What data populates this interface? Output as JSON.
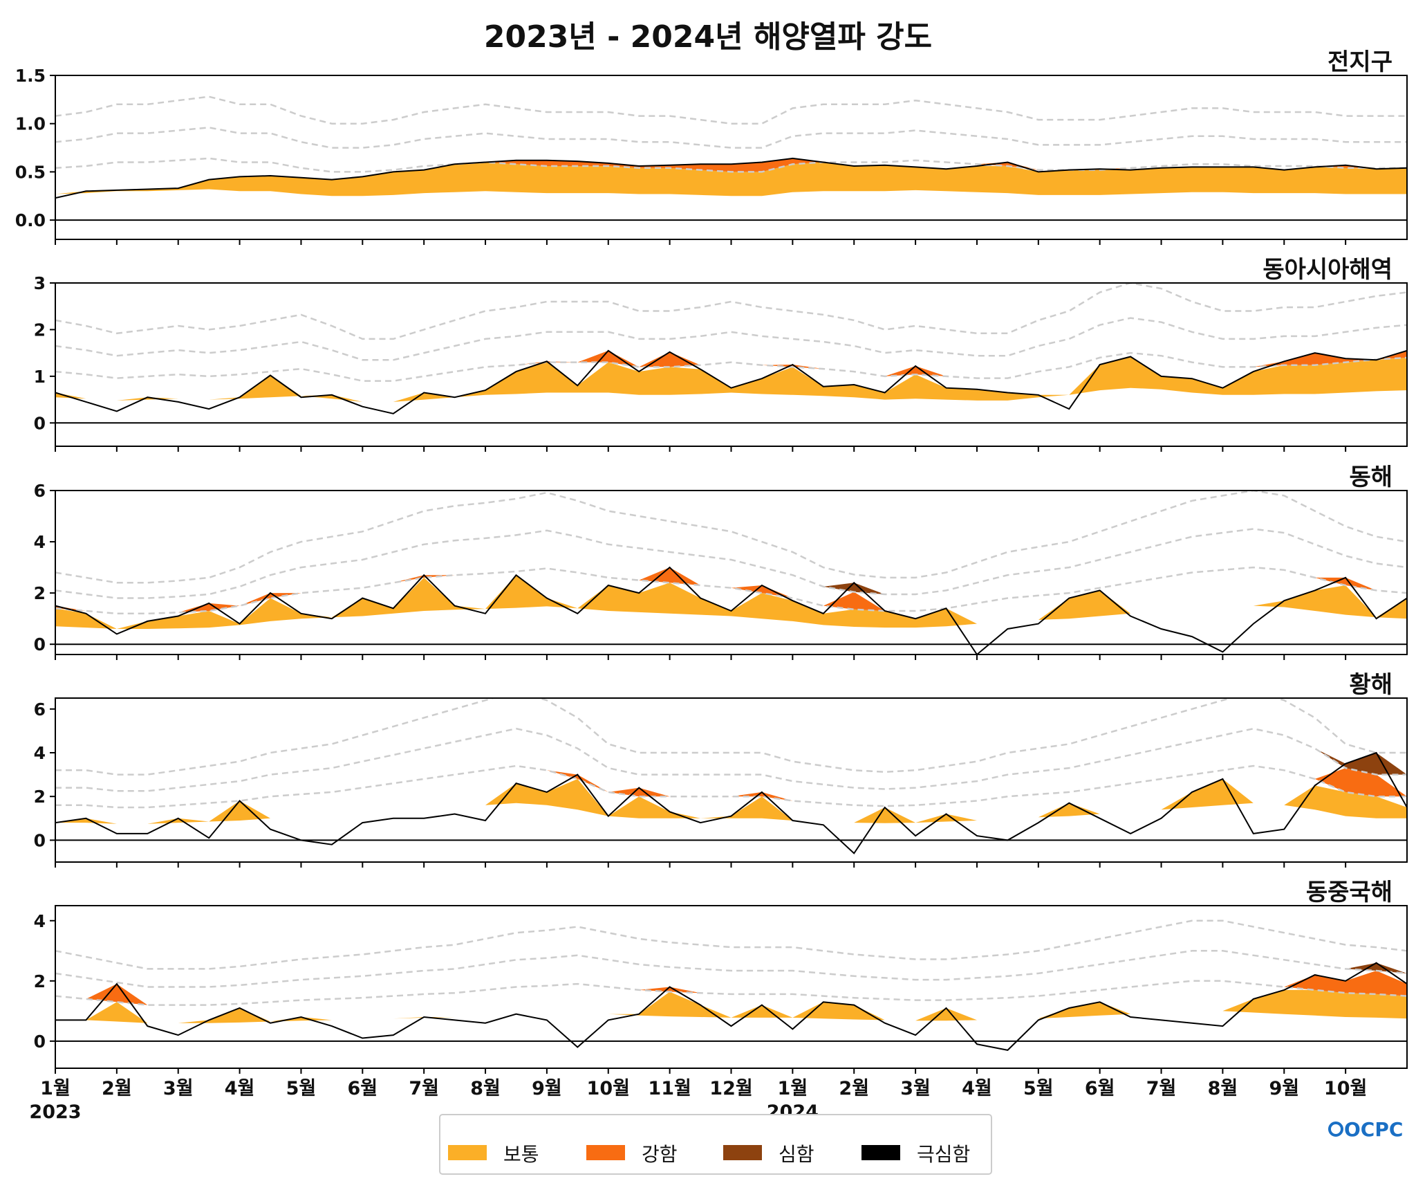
{
  "title": "2023년 - 2024년 해양열파 강도",
  "logo_text": "OCPC",
  "colors": {
    "moderate": "#fbaf27",
    "strong": "#f86c12",
    "severe": "#8d420f",
    "extreme": "#000000",
    "threshold": "#cccccc"
  },
  "legend": [
    {
      "label": "보통",
      "color": "#fbaf27"
    },
    {
      "label": "강함",
      "color": "#f86c12"
    },
    {
      "label": "심함",
      "color": "#8d420f"
    },
    {
      "label": "극심함",
      "color": "#000000"
    }
  ],
  "x_axis": {
    "month_labels": [
      "1월",
      "2월",
      "3월",
      "4월",
      "5월",
      "6월",
      "7월",
      "8월",
      "9월",
      "10월",
      "11월",
      "12월",
      "1월",
      "2월",
      "3월",
      "4월",
      "5월",
      "6월",
      "7월",
      "8월",
      "9월",
      "10월"
    ],
    "month_index": [
      0,
      1,
      2,
      3,
      4,
      5,
      6,
      7,
      8,
      9,
      10,
      11,
      12,
      13,
      14,
      15,
      16,
      17,
      18,
      19,
      20,
      21
    ],
    "year_labels": [
      "2023",
      "2024"
    ],
    "year_month_index": [
      0,
      12
    ],
    "range_months": [
      0,
      22
    ]
  },
  "chart_data": [
    {
      "type": "area",
      "title": "전지구",
      "ylim": [
        -0.2,
        1.5
      ],
      "yticks": [
        "0.0",
        "0.5",
        "1.0",
        "1.5"
      ],
      "ytick_values": [
        0,
        0.5,
        1.0,
        1.5
      ],
      "x_month": [
        0,
        0.5,
        1,
        1.5,
        2,
        2.5,
        3,
        3.5,
        4,
        4.5,
        5,
        5.5,
        6,
        6.5,
        7,
        7.5,
        8,
        8.5,
        9,
        9.5,
        10,
        10.5,
        11,
        11.5,
        12,
        12.5,
        13,
        13.5,
        14,
        14.5,
        15,
        15.5,
        16,
        16.5,
        17,
        17.5,
        18,
        18.5,
        19,
        19.5,
        20,
        20.5,
        21,
        21.5,
        22
      ],
      "anomaly": [
        0.23,
        0.3,
        0.31,
        0.32,
        0.33,
        0.42,
        0.45,
        0.46,
        0.44,
        0.42,
        0.45,
        0.5,
        0.52,
        0.58,
        0.6,
        0.62,
        0.62,
        0.61,
        0.59,
        0.56,
        0.57,
        0.58,
        0.58,
        0.6,
        0.64,
        0.6,
        0.56,
        0.57,
        0.55,
        0.53,
        0.56,
        0.6,
        0.5,
        0.52,
        0.53,
        0.52,
        0.54,
        0.55,
        0.55,
        0.55,
        0.52,
        0.55,
        0.57,
        0.53,
        0.54
      ],
      "threshold": [
        0.27,
        0.28,
        0.3,
        0.3,
        0.31,
        0.32,
        0.3,
        0.3,
        0.27,
        0.25,
        0.25,
        0.26,
        0.28,
        0.29,
        0.3,
        0.29,
        0.28,
        0.28,
        0.28,
        0.27,
        0.27,
        0.26,
        0.25,
        0.25,
        0.29,
        0.3,
        0.3,
        0.3,
        0.31,
        0.3,
        0.29,
        0.28,
        0.26,
        0.26,
        0.26,
        0.27,
        0.28,
        0.29,
        0.29,
        0.28,
        0.28,
        0.28,
        0.27,
        0.27,
        0.27
      ],
      "gray_threshold_levels": [
        2,
        3,
        4
      ]
    },
    {
      "type": "area",
      "title": "동아시아해역",
      "ylim": [
        -0.5,
        3
      ],
      "yticks": [
        "0",
        "1",
        "2",
        "3"
      ],
      "ytick_values": [
        0,
        1,
        2,
        3
      ],
      "x_month": [
        0,
        0.5,
        1,
        1.5,
        2,
        2.5,
        3,
        3.5,
        4,
        4.5,
        5,
        5.5,
        6,
        6.5,
        7,
        7.5,
        8,
        8.5,
        9,
        9.5,
        10,
        10.5,
        11,
        11.5,
        12,
        12.5,
        13,
        13.5,
        14,
        14.5,
        15,
        15.5,
        16,
        16.5,
        17,
        17.5,
        18,
        18.5,
        19,
        19.5,
        20,
        20.5,
        21,
        21.5,
        22
      ],
      "anomaly": [
        0.65,
        0.45,
        0.25,
        0.55,
        0.45,
        0.3,
        0.55,
        1.02,
        0.55,
        0.6,
        0.35,
        0.2,
        0.65,
        0.55,
        0.7,
        1.1,
        1.32,
        0.8,
        1.55,
        1.1,
        1.52,
        1.15,
        0.75,
        0.95,
        1.25,
        0.78,
        0.82,
        0.65,
        1.22,
        0.75,
        0.72,
        0.65,
        0.6,
        0.3,
        1.25,
        1.42,
        1.0,
        0.95,
        0.75,
        1.1,
        1.32,
        1.5,
        1.38,
        1.35,
        1.55
      ],
      "threshold": [
        0.55,
        0.52,
        0.48,
        0.5,
        0.52,
        0.5,
        0.52,
        0.55,
        0.58,
        0.52,
        0.45,
        0.45,
        0.5,
        0.55,
        0.6,
        0.62,
        0.65,
        0.65,
        0.65,
        0.6,
        0.6,
        0.62,
        0.65,
        0.62,
        0.6,
        0.58,
        0.55,
        0.5,
        0.52,
        0.5,
        0.48,
        0.48,
        0.55,
        0.6,
        0.7,
        0.75,
        0.72,
        0.65,
        0.6,
        0.6,
        0.62,
        0.62,
        0.65,
        0.68,
        0.7
      ],
      "gray_threshold_levels": [
        2,
        3,
        4
      ]
    },
    {
      "type": "area",
      "title": "동해",
      "ylim": [
        -0.4,
        6
      ],
      "yticks": [
        "0",
        "2",
        "4",
        "6"
      ],
      "ytick_values": [
        0,
        2,
        4,
        6
      ],
      "x_month": [
        0,
        0.5,
        1,
        1.5,
        2,
        2.5,
        3,
        3.5,
        4,
        4.5,
        5,
        5.5,
        6,
        6.5,
        7,
        7.5,
        8,
        8.5,
        9,
        9.5,
        10,
        10.5,
        11,
        11.5,
        12,
        12.5,
        13,
        13.5,
        14,
        14.5,
        15,
        15.5,
        16,
        16.5,
        17,
        17.5,
        18,
        18.5,
        19,
        19.5,
        20,
        20.5,
        21,
        21.5,
        22
      ],
      "anomaly": [
        1.5,
        1.2,
        0.4,
        0.9,
        1.1,
        1.6,
        0.8,
        2.0,
        1.2,
        1.0,
        1.8,
        1.4,
        2.7,
        1.5,
        1.2,
        2.7,
        1.8,
        1.2,
        2.3,
        2.0,
        3.0,
        1.8,
        1.3,
        2.3,
        1.7,
        1.2,
        2.4,
        1.3,
        1.0,
        1.4,
        -0.4,
        0.6,
        0.8,
        1.8,
        2.1,
        1.1,
        0.6,
        0.3,
        -0.3,
        0.8,
        1.7,
        2.1,
        2.6,
        1.0,
        1.8
      ],
      "threshold": [
        0.7,
        0.65,
        0.6,
        0.6,
        0.62,
        0.65,
        0.75,
        0.9,
        1.0,
        1.05,
        1.1,
        1.2,
        1.3,
        1.35,
        1.38,
        1.42,
        1.48,
        1.4,
        1.3,
        1.25,
        1.2,
        1.15,
        1.1,
        1.0,
        0.9,
        0.75,
        0.68,
        0.65,
        0.65,
        0.7,
        0.8,
        0.9,
        0.95,
        1.0,
        1.1,
        1.2,
        1.3,
        1.4,
        1.45,
        1.5,
        1.45,
        1.3,
        1.15,
        1.05,
        1.0
      ],
      "gray_threshold_levels": [
        2,
        3,
        4
      ]
    },
    {
      "type": "area",
      "title": "황해",
      "ylim": [
        -1,
        6.5
      ],
      "yticks": [
        "0",
        "2",
        "4",
        "6"
      ],
      "ytick_values": [
        0,
        2,
        4,
        6
      ],
      "x_month": [
        0,
        0.5,
        1,
        1.5,
        2,
        2.5,
        3,
        3.5,
        4,
        4.5,
        5,
        5.5,
        6,
        6.5,
        7,
        7.5,
        8,
        8.5,
        9,
        9.5,
        10,
        10.5,
        11,
        11.5,
        12,
        12.5,
        13,
        13.5,
        14,
        14.5,
        15,
        15.5,
        16,
        16.5,
        17,
        17.5,
        18,
        18.5,
        19,
        19.5,
        20,
        20.5,
        21,
        21.5,
        22
      ],
      "anomaly": [
        0.8,
        1.0,
        0.3,
        0.3,
        1.0,
        0.1,
        1.8,
        0.5,
        0.0,
        -0.2,
        0.8,
        1.0,
        1.0,
        1.2,
        0.9,
        2.6,
        2.2,
        3.0,
        1.1,
        2.4,
        1.3,
        0.8,
        1.1,
        2.2,
        0.9,
        0.7,
        -0.6,
        1.5,
        0.2,
        1.2,
        0.2,
        0.0,
        0.8,
        1.7,
        1.0,
        0.3,
        1.0,
        2.2,
        2.8,
        0.3,
        0.5,
        2.5,
        3.5,
        4.0,
        1.5
      ],
      "threshold": [
        0.8,
        0.8,
        0.75,
        0.75,
        0.8,
        0.85,
        0.9,
        1.0,
        1.05,
        1.1,
        1.2,
        1.3,
        1.4,
        1.5,
        1.6,
        1.7,
        1.6,
        1.4,
        1.1,
        1.0,
        1.0,
        1.0,
        1.0,
        1.0,
        0.9,
        0.85,
        0.8,
        0.78,
        0.8,
        0.85,
        0.9,
        1.0,
        1.05,
        1.1,
        1.2,
        1.3,
        1.4,
        1.5,
        1.6,
        1.7,
        1.6,
        1.4,
        1.1,
        1.0,
        1.0
      ],
      "gray_threshold_levels": [
        2,
        3,
        4
      ]
    },
    {
      "type": "area",
      "title": "동중국해",
      "ylim": [
        -0.9,
        4.5
      ],
      "yticks": [
        "0",
        "2",
        "4"
      ],
      "ytick_values": [
        0,
        2,
        4
      ],
      "x_month": [
        0,
        0.5,
        1,
        1.5,
        2,
        2.5,
        3,
        3.5,
        4,
        4.5,
        5,
        5.5,
        6,
        6.5,
        7,
        7.5,
        8,
        8.5,
        9,
        9.5,
        10,
        10.5,
        11,
        11.5,
        12,
        12.5,
        13,
        13.5,
        14,
        14.5,
        15,
        15.5,
        16,
        16.5,
        17,
        17.5,
        18,
        18.5,
        19,
        19.5,
        20,
        20.5,
        21,
        21.5,
        22
      ],
      "anomaly": [
        0.7,
        0.7,
        1.9,
        0.5,
        0.2,
        0.7,
        1.1,
        0.6,
        0.8,
        0.5,
        0.1,
        0.2,
        0.8,
        0.7,
        0.6,
        0.9,
        0.7,
        -0.2,
        0.7,
        0.9,
        1.8,
        1.2,
        0.5,
        1.2,
        0.4,
        1.3,
        1.2,
        0.6,
        0.2,
        1.1,
        -0.1,
        -0.3,
        0.7,
        1.1,
        1.3,
        0.8,
        0.7,
        0.6,
        0.5,
        1.4,
        1.7,
        2.2,
        2.0,
        2.6,
        1.9
      ],
      "threshold": [
        0.75,
        0.7,
        0.65,
        0.6,
        0.6,
        0.6,
        0.62,
        0.65,
        0.68,
        0.7,
        0.72,
        0.75,
        0.78,
        0.8,
        0.85,
        0.9,
        0.92,
        0.95,
        0.9,
        0.85,
        0.82,
        0.8,
        0.78,
        0.78,
        0.78,
        0.75,
        0.72,
        0.7,
        0.68,
        0.68,
        0.7,
        0.72,
        0.75,
        0.8,
        0.85,
        0.9,
        0.95,
        1.0,
        1.0,
        0.95,
        0.9,
        0.85,
        0.8,
        0.78,
        0.75
      ],
      "gray_threshold_levels": [
        2,
        3,
        4
      ]
    }
  ]
}
